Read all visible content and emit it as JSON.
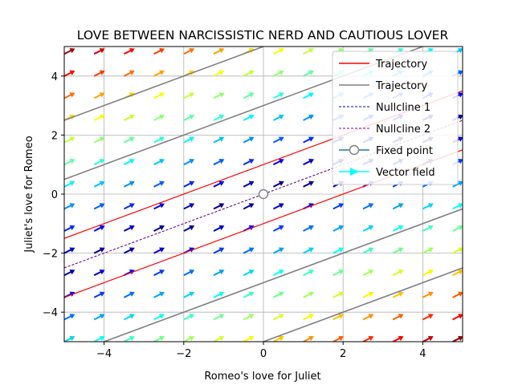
{
  "chart_data": {
    "type": "line",
    "title": "LOVE BETWEEN NARCISSISTIC NERD AND CAUTIOUS LOVER",
    "xlabel": "Romeo's love for Juliet",
    "ylabel": "Juliet's love for Romeo",
    "xlim": [
      -5,
      5
    ],
    "ylim": [
      -5,
      5
    ],
    "xticks": [
      -4,
      -2,
      0,
      2,
      4
    ],
    "yticks": [
      -4,
      -2,
      0,
      2,
      4
    ],
    "grid": true,
    "legend_position": "top-right",
    "series": [
      {
        "name": "Trajectory",
        "kind": "trajectory-red",
        "color": "#ff0000",
        "lines": [
          {
            "x": [
              -5,
              5
            ],
            "y": [
              -1.5,
              3.5
            ]
          },
          {
            "x": [
              -5,
              5
            ],
            "y": [
              -3.5,
              1.5
            ]
          }
        ]
      },
      {
        "name": "Trajectory",
        "kind": "trajectory-gray",
        "color": "#808080",
        "lines": [
          {
            "x": [
              -5,
              0
            ],
            "y": [
              2.5,
              5
            ]
          },
          {
            "x": [
              -5,
              5
            ],
            "y": [
              0.5,
              5.5
            ]
          },
          {
            "x": [
              -5,
              5
            ],
            "y": [
              -5.5,
              -0.5
            ]
          },
          {
            "x": [
              0,
              5
            ],
            "y": [
              -5,
              -2.5
            ]
          }
        ]
      },
      {
        "name": "Nullcline 1",
        "kind": "nullcline-1",
        "color": "#00008b",
        "dash": true,
        "lines": [
          {
            "x": [
              -5,
              5
            ],
            "y": [
              -2.5,
              2.5
            ]
          }
        ]
      },
      {
        "name": "Nullcline 2",
        "kind": "nullcline-2",
        "color": "#800080",
        "dash": true,
        "lines": [
          {
            "x": [
              -5,
              5
            ],
            "y": [
              -2.5,
              2.5
            ]
          }
        ]
      },
      {
        "name": "Fixed point",
        "kind": "fixed-point",
        "color": "#1f77b4",
        "points": [
          {
            "x": 0,
            "y": 0
          }
        ]
      },
      {
        "name": "Vector field",
        "kind": "vector-field",
        "color": "#00ffff",
        "grid_step": 0.75
      }
    ]
  }
}
